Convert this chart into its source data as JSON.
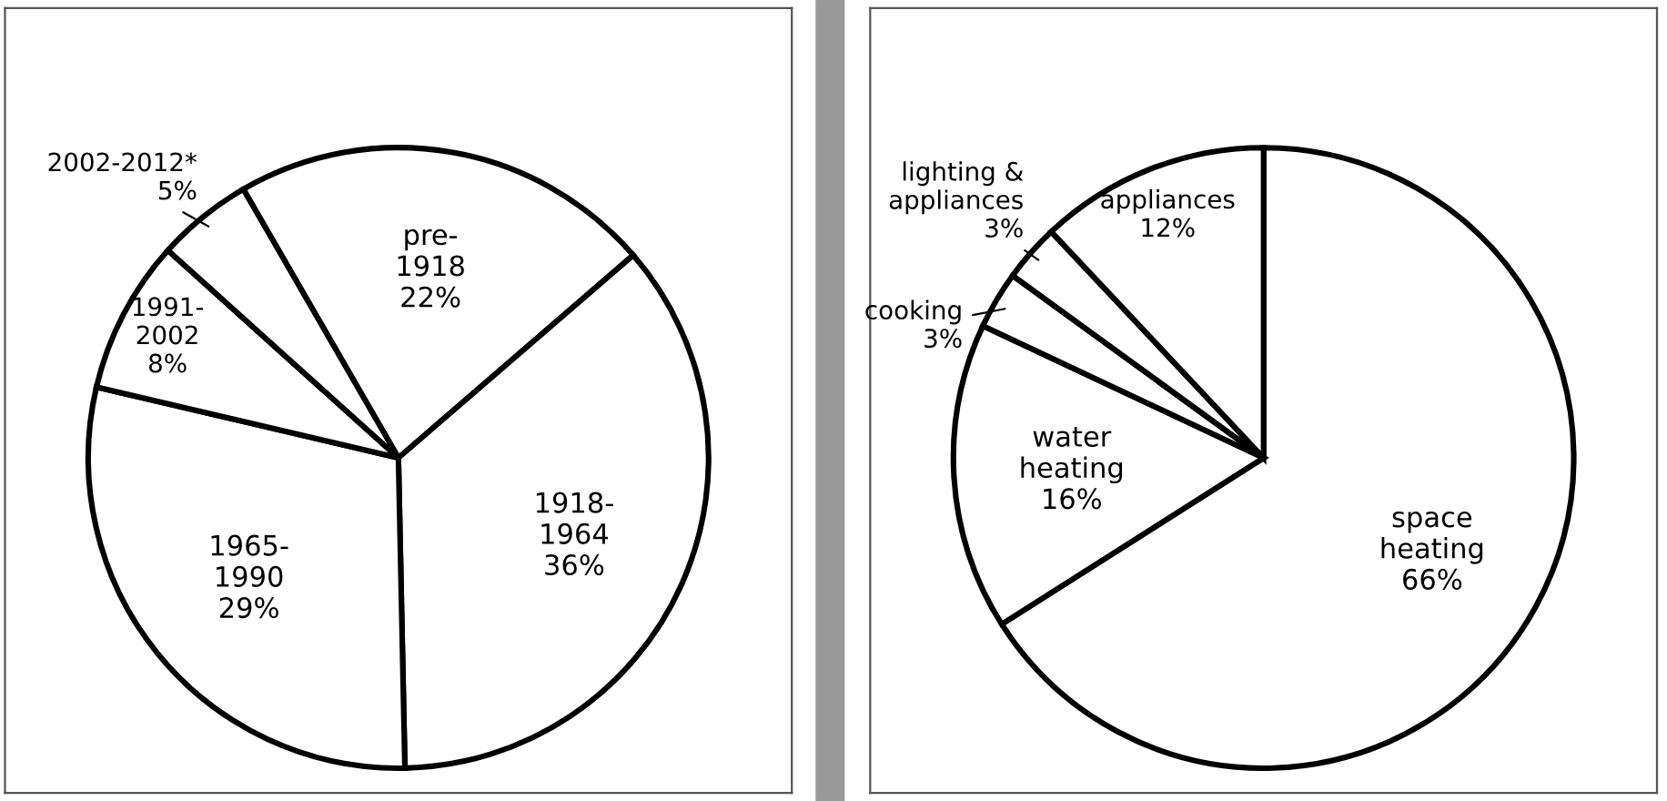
{
  "chart_data": [
    {
      "type": "pie",
      "categories": [
        "pre-1918",
        "1918-1964",
        "1965-1990",
        "1991-2002",
        "2002-2012*"
      ],
      "values": [
        22,
        36,
        29,
        8,
        5
      ],
      "value_labels": [
        "22%",
        "36%",
        "29%",
        "8%",
        "5%"
      ],
      "colors": [
        "#ffffff",
        "#ffffff",
        "#ffffff",
        "#ffffff",
        "#ffffff"
      ]
    },
    {
      "type": "pie",
      "categories": [
        "space heating",
        "water heating",
        "cooking",
        "lighting & appliances",
        "appliances"
      ],
      "values": [
        66,
        16,
        3,
        3,
        12
      ],
      "value_labels": [
        "66%",
        "16%",
        "3%",
        "3%",
        "12%"
      ],
      "colors": [
        "#ffffff",
        "#ffffff",
        "#ffffff",
        "#ffffff",
        "#ffffff"
      ]
    }
  ]
}
